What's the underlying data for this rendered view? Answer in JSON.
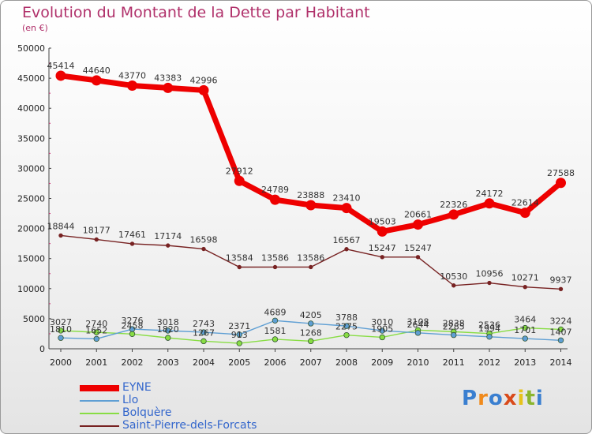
{
  "title": "Evolution du Montant de la Dette par Habitant",
  "subtitle": "(en €)",
  "logo_text": "Proxiti",
  "chart_data": {
    "type": "line",
    "title": "Evolution du Montant de la Dette par Habitant",
    "subtitle": "(en €)",
    "x": [
      "2000",
      "2001",
      "2002",
      "2003",
      "2004",
      "2005",
      "2006",
      "2007",
      "2008",
      "2009",
      "2010",
      "2011",
      "2012",
      "2013",
      "2014"
    ],
    "ylim": [
      0,
      50000
    ],
    "yticks": [
      0,
      5000,
      10000,
      15000,
      20000,
      25000,
      30000,
      35000,
      40000,
      45000,
      50000
    ],
    "grid": false,
    "legend_position": "bottom-left",
    "series": [
      {
        "name": "EYNE",
        "color": "#ee0000",
        "values": [
          45414,
          44640,
          43770,
          43383,
          42996,
          27912,
          24789,
          23888,
          23410,
          19503,
          20661,
          22326,
          24172,
          22614,
          27588
        ],
        "labels": [
          "45414",
          "44640",
          "43770",
          "43383",
          "42996",
          "27912",
          "24789",
          "23888",
          "23410",
          "19503",
          "20661",
          "22326",
          "24172",
          "22614",
          "27588"
        ]
      },
      {
        "name": "Llo",
        "color": "#5f9fd4",
        "values": [
          1810,
          1652,
          3276,
          3018,
          2743,
          2371,
          4689,
          4205,
          3788,
          3010,
          2644,
          2285,
          1994,
          1701,
          1407
        ],
        "labels": [
          "1810",
          "1652",
          "3276",
          "3018",
          "2743",
          "2371",
          "4689",
          "4205",
          "3788",
          "3010",
          "2644",
          "2285",
          "1994",
          "1701",
          "1407"
        ]
      },
      {
        "name": "Bolquère",
        "color": "#88dd44",
        "values": [
          3027,
          2740,
          2458,
          1820,
          1267,
          913,
          1581,
          1268,
          2275,
          1905,
          3108,
          2838,
          2536,
          3464,
          3224
        ],
        "labels": [
          "3027",
          "2740",
          "2458",
          "1820",
          "1267",
          "913",
          "1581",
          "1268",
          "2275",
          "1905",
          "3108",
          "2838",
          "2536",
          "3464",
          "3224"
        ]
      },
      {
        "name": "Saint-Pierre-dels-Forcats",
        "color": "#772222",
        "values": [
          18844,
          18177,
          17461,
          17174,
          16598,
          13584,
          13586,
          13586,
          16567,
          15247,
          15247,
          10530,
          10956,
          10271,
          9937
        ],
        "labels": [
          "18844",
          "18177",
          "17461",
          "17174",
          "16598",
          "13584",
          "13586",
          "13586",
          "16567",
          "15247",
          "15247",
          "10530",
          "10956",
          "10271",
          "9937"
        ]
      }
    ]
  }
}
